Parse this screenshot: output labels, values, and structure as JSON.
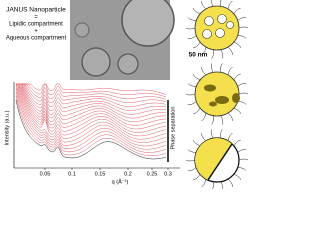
{
  "legend": {
    "title": "JANUS Nanoparticle",
    "equals": "=",
    "line1": "Lipidic compartment",
    "plus": "+",
    "line2": "Aqueous compartment"
  },
  "scale_bar": "50 nm",
  "plot": {
    "y_label": "Intensity (a.u.)",
    "x_label": "q (Å⁻¹)",
    "x_tick_labels": [
      "0.05",
      "0.1",
      "0.15",
      "0.2",
      "0.25",
      "0.3"
    ],
    "annotation": "Phase separation"
  }
}
